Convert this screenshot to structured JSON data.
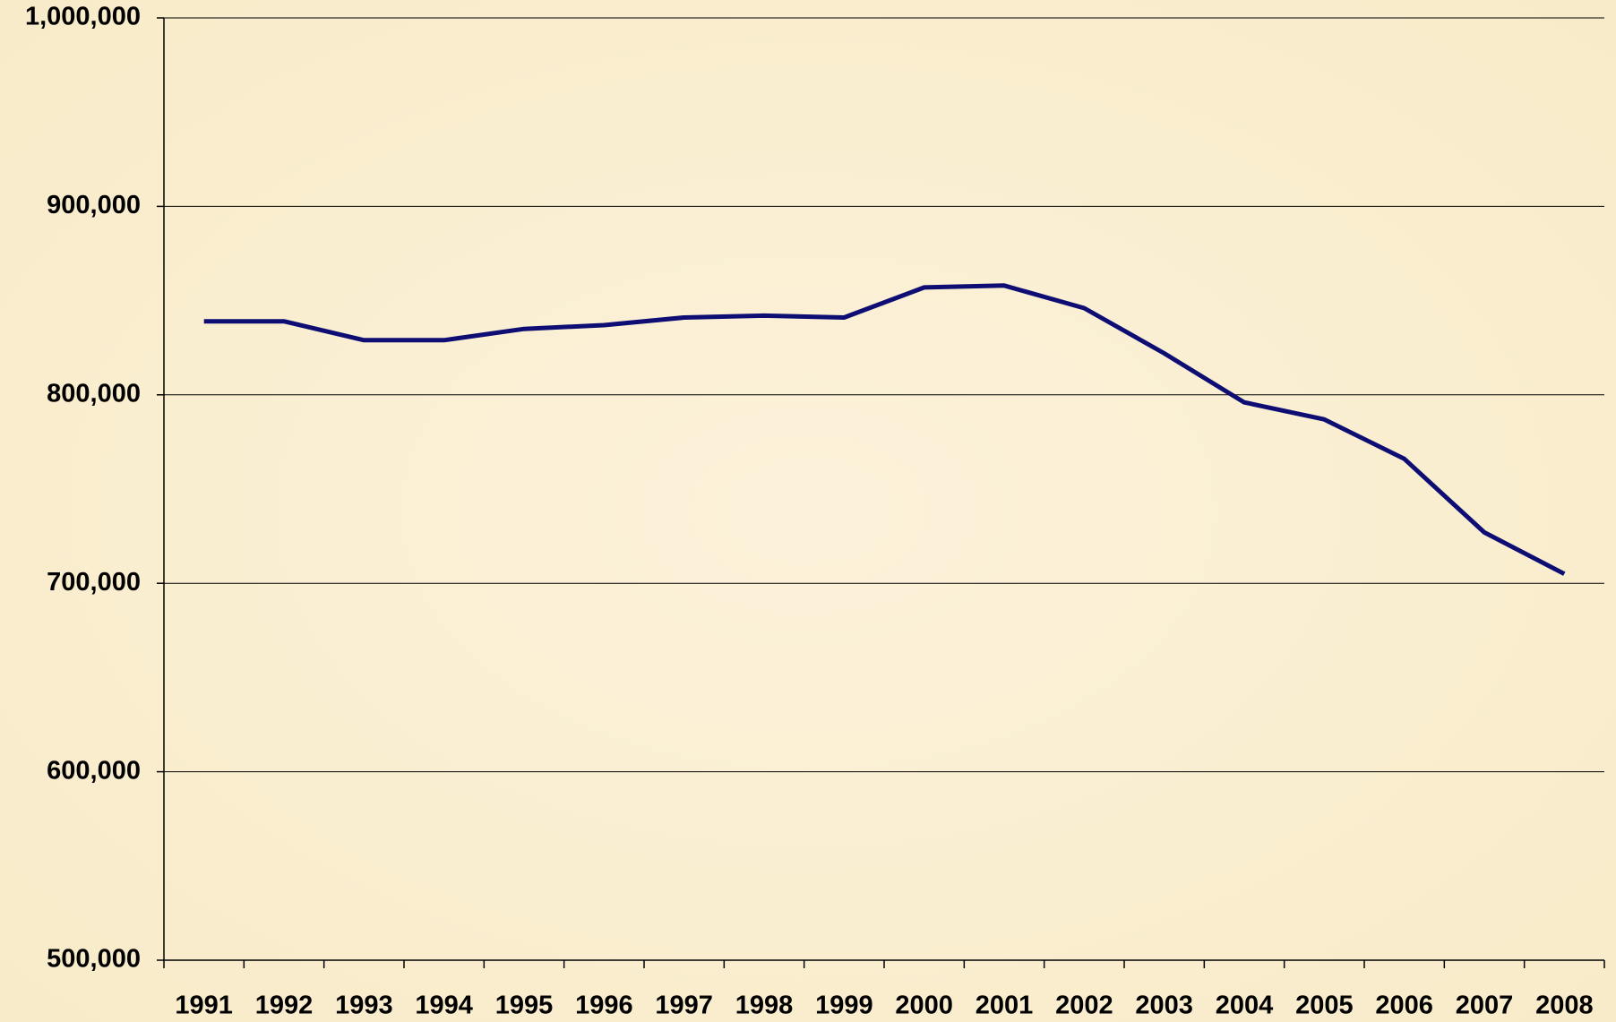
{
  "chart_data": {
    "type": "line",
    "categories": [
      "1991",
      "1992",
      "1993",
      "1994",
      "1995",
      "1996",
      "1997",
      "1998",
      "1999",
      "2000",
      "2001",
      "2002",
      "2003",
      "2004",
      "2005",
      "2006",
      "2007",
      "2008"
    ],
    "series": [
      {
        "color": "#0d0d73",
        "values": [
          839000,
          839000,
          829000,
          829000,
          835000,
          837000,
          841000,
          842000,
          841000,
          857000,
          858000,
          846000,
          822000,
          796000,
          787000,
          766000,
          727000,
          705000
        ]
      }
    ],
    "ylim": [
      500000,
      1000000
    ],
    "yticks": [
      {
        "value": 500000,
        "label": "500,000"
      },
      {
        "value": 600000,
        "label": "600,000"
      },
      {
        "value": 700000,
        "label": "700,000"
      },
      {
        "value": 800000,
        "label": "800,000"
      },
      {
        "value": 900000,
        "label": "900,000"
      },
      {
        "value": 1000000,
        "label": "1,000,000"
      }
    ],
    "grid": true
  }
}
